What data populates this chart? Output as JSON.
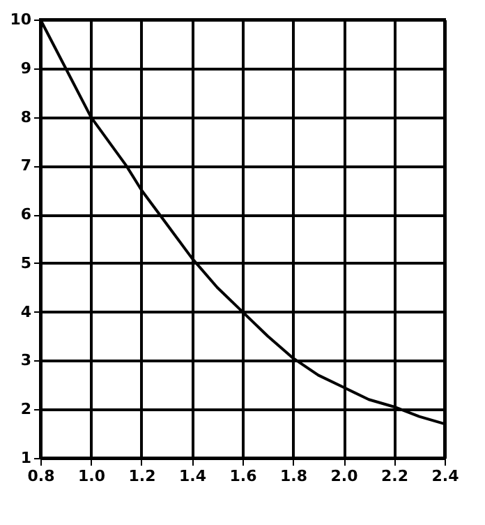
{
  "chart_data": {
    "type": "line",
    "x": [
      0.8,
      0.9,
      1.0,
      1.14,
      1.2,
      1.3,
      1.4,
      1.5,
      1.6,
      1.7,
      1.8,
      1.9,
      2.0,
      2.1,
      2.2,
      2.3,
      2.4
    ],
    "series": [
      {
        "color": "#000000",
        "values": [
          10,
          9,
          8,
          7,
          6.5,
          5.8,
          5.1,
          4.5,
          4,
          3.5,
          3.05,
          2.7,
          2.45,
          2.2,
          2.05,
          1.85,
          1.7
        ]
      }
    ],
    "xlim": [
      0.8,
      2.4
    ],
    "xticks": [
      {
        "value": 0.8,
        "label": "0.8"
      },
      {
        "value": 1.0,
        "label": "1.0"
      },
      {
        "value": 1.2,
        "label": "1.2"
      },
      {
        "value": 1.4,
        "label": "1.4"
      },
      {
        "value": 1.6,
        "label": "1.6"
      },
      {
        "value": 1.8,
        "label": "1.8"
      },
      {
        "value": 2.0,
        "label": "2.0"
      },
      {
        "value": 2.2,
        "label": "2.2"
      },
      {
        "value": 2.4,
        "label": "2.4"
      }
    ],
    "ylim": [
      1,
      10
    ],
    "yticks": [
      1,
      2,
      3,
      4,
      5,
      6,
      7,
      8,
      9,
      10
    ],
    "grid": true,
    "marker": "none",
    "line_style": "solid"
  }
}
